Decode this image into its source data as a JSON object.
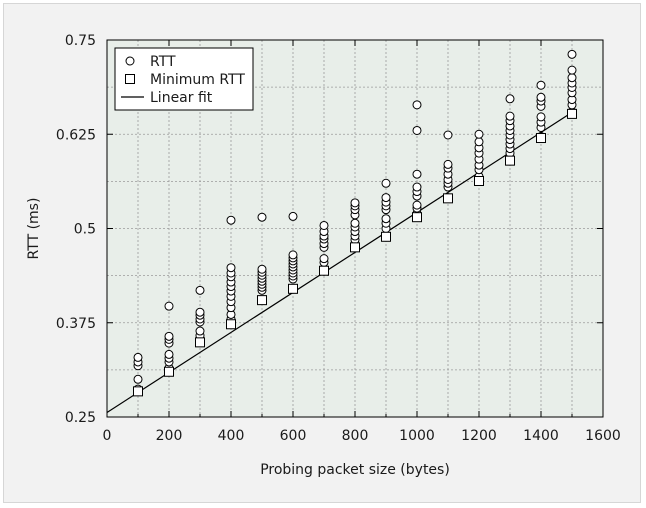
{
  "chart_data": {
    "type": "scatter",
    "title": "",
    "xlabel": "Probing packet size (bytes)",
    "ylabel": "RTT (ms)",
    "xlim": [
      0,
      1600
    ],
    "ylim": [
      0.25,
      0.75
    ],
    "xticks": [
      0,
      200,
      400,
      600,
      800,
      1000,
      1200,
      1400,
      1600
    ],
    "yticks": [
      0.25,
      0.375,
      0.5,
      0.625,
      0.75
    ],
    "ytick_labels": [
      "0.25",
      "0.375",
      "0.5",
      "0.625",
      "0.75"
    ],
    "grid": true,
    "legend_position": "top-left",
    "colors": {
      "plot_background": "#e8eee9",
      "figure_background": "#f2f2f2",
      "marker_fill": "#ffffff",
      "marker_edge": "#000000",
      "line": "#000000",
      "grid": "#9a9a9a"
    },
    "series": [
      {
        "name": "RTT",
        "marker": "circle",
        "points": [
          [
            100,
            0.287
          ],
          [
            100,
            0.3
          ],
          [
            100,
            0.318
          ],
          [
            100,
            0.323
          ],
          [
            100,
            0.329
          ],
          [
            200,
            0.315
          ],
          [
            200,
            0.323
          ],
          [
            200,
            0.328
          ],
          [
            200,
            0.333
          ],
          [
            200,
            0.348
          ],
          [
            200,
            0.353
          ],
          [
            200,
            0.357
          ],
          [
            200,
            0.397
          ],
          [
            300,
            0.353
          ],
          [
            300,
            0.358
          ],
          [
            300,
            0.364
          ],
          [
            300,
            0.376
          ],
          [
            300,
            0.38
          ],
          [
            300,
            0.385
          ],
          [
            300,
            0.389
          ],
          [
            300,
            0.418
          ],
          [
            400,
            0.38
          ],
          [
            400,
            0.386
          ],
          [
            400,
            0.395
          ],
          [
            400,
            0.403
          ],
          [
            400,
            0.41
          ],
          [
            400,
            0.417
          ],
          [
            400,
            0.423
          ],
          [
            400,
            0.429
          ],
          [
            400,
            0.436
          ],
          [
            400,
            0.441
          ],
          [
            400,
            0.448
          ],
          [
            400,
            0.511
          ],
          [
            500,
            0.418
          ],
          [
            500,
            0.422
          ],
          [
            500,
            0.426
          ],
          [
            500,
            0.43
          ],
          [
            500,
            0.434
          ],
          [
            500,
            0.438
          ],
          [
            500,
            0.442
          ],
          [
            500,
            0.446
          ],
          [
            500,
            0.515
          ],
          [
            600,
            0.433
          ],
          [
            600,
            0.437
          ],
          [
            600,
            0.441
          ],
          [
            600,
            0.445
          ],
          [
            600,
            0.449
          ],
          [
            600,
            0.453
          ],
          [
            600,
            0.457
          ],
          [
            600,
            0.461
          ],
          [
            600,
            0.465
          ],
          [
            600,
            0.516
          ],
          [
            700,
            0.455
          ],
          [
            700,
            0.46
          ],
          [
            700,
            0.475
          ],
          [
            700,
            0.48
          ],
          [
            700,
            0.486
          ],
          [
            700,
            0.49
          ],
          [
            700,
            0.496
          ],
          [
            700,
            0.504
          ],
          [
            800,
            0.485
          ],
          [
            800,
            0.49
          ],
          [
            800,
            0.496
          ],
          [
            800,
            0.502
          ],
          [
            800,
            0.507
          ],
          [
            800,
            0.518
          ],
          [
            800,
            0.525
          ],
          [
            800,
            0.53
          ],
          [
            800,
            0.534
          ],
          [
            900,
            0.5
          ],
          [
            900,
            0.507
          ],
          [
            900,
            0.513
          ],
          [
            900,
            0.525
          ],
          [
            900,
            0.53
          ],
          [
            900,
            0.535
          ],
          [
            900,
            0.541
          ],
          [
            900,
            0.56
          ],
          [
            1000,
            0.52
          ],
          [
            1000,
            0.527
          ],
          [
            1000,
            0.531
          ],
          [
            1000,
            0.543
          ],
          [
            1000,
            0.549
          ],
          [
            1000,
            0.555
          ],
          [
            1000,
            0.572
          ],
          [
            1000,
            0.63
          ],
          [
            1000,
            0.664
          ],
          [
            1100,
            0.541
          ],
          [
            1100,
            0.555
          ],
          [
            1100,
            0.56
          ],
          [
            1100,
            0.565
          ],
          [
            1100,
            0.572
          ],
          [
            1100,
            0.58
          ],
          [
            1100,
            0.585
          ],
          [
            1100,
            0.624
          ],
          [
            1200,
            0.563
          ],
          [
            1200,
            0.569
          ],
          [
            1200,
            0.578
          ],
          [
            1200,
            0.584
          ],
          [
            1200,
            0.592
          ],
          [
            1200,
            0.6
          ],
          [
            1200,
            0.607
          ],
          [
            1200,
            0.615
          ],
          [
            1200,
            0.625
          ],
          [
            1300,
            0.593
          ],
          [
            1300,
            0.6
          ],
          [
            1300,
            0.606
          ],
          [
            1300,
            0.612
          ],
          [
            1300,
            0.618
          ],
          [
            1300,
            0.624
          ],
          [
            1300,
            0.63
          ],
          [
            1300,
            0.636
          ],
          [
            1300,
            0.643
          ],
          [
            1300,
            0.649
          ],
          [
            1300,
            0.672
          ],
          [
            1400,
            0.622
          ],
          [
            1400,
            0.634
          ],
          [
            1400,
            0.641
          ],
          [
            1400,
            0.648
          ],
          [
            1400,
            0.662
          ],
          [
            1400,
            0.669
          ],
          [
            1400,
            0.674
          ],
          [
            1400,
            0.69
          ],
          [
            1500,
            0.655
          ],
          [
            1500,
            0.664
          ],
          [
            1500,
            0.671
          ],
          [
            1500,
            0.68
          ],
          [
            1500,
            0.687
          ],
          [
            1500,
            0.693
          ],
          [
            1500,
            0.7
          ],
          [
            1500,
            0.71
          ],
          [
            1500,
            0.731
          ]
        ]
      },
      {
        "name": "Minimum RTT",
        "marker": "square",
        "points": [
          [
            100,
            0.284
          ],
          [
            200,
            0.31
          ],
          [
            300,
            0.349
          ],
          [
            400,
            0.373
          ],
          [
            500,
            0.405
          ],
          [
            600,
            0.42
          ],
          [
            700,
            0.444
          ],
          [
            800,
            0.475
          ],
          [
            900,
            0.489
          ],
          [
            1000,
            0.515
          ],
          [
            1100,
            0.54
          ],
          [
            1200,
            0.563
          ],
          [
            1300,
            0.59
          ],
          [
            1400,
            0.62
          ],
          [
            1500,
            0.652
          ]
        ]
      },
      {
        "name": "Linear fit",
        "marker": "line",
        "points": [
          [
            0,
            0.256
          ],
          [
            1500,
            0.654
          ]
        ]
      }
    ]
  }
}
